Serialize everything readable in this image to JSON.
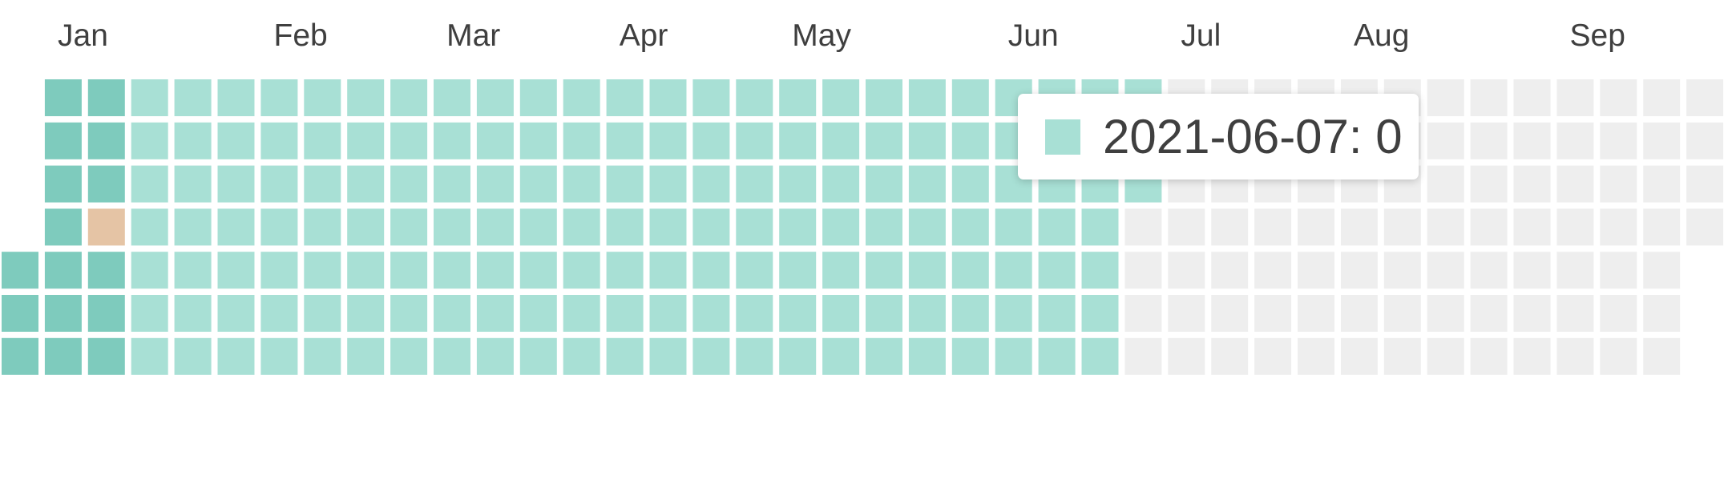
{
  "chart_data": {
    "type": "heatmap",
    "year": 2021,
    "first_day": "2021-01-01",
    "last_day": "2021-09-30",
    "month_labels": [
      "Jan",
      "Feb",
      "Mar",
      "Apr",
      "May",
      "Jun",
      "Jul",
      "Aug",
      "Sep"
    ],
    "color_scale": {
      "empty": "#eeeeee",
      "zero": "#a8e0d5",
      "low": "#7ecbbd",
      "highlight": "#e5c4a5"
    },
    "filled_until": "2021-06-30",
    "values": [
      {
        "from": "2021-01-01",
        "to": "2021-01-13",
        "level": "low"
      },
      {
        "date": "2021-01-14",
        "level": "highlight"
      },
      {
        "from": "2021-01-15",
        "to": "2021-01-17",
        "level": "low"
      },
      {
        "from": "2021-01-18",
        "to": "2021-06-30",
        "level": "zero"
      }
    ],
    "tooltip": {
      "date": "2021-06-07",
      "value": 0,
      "text": "2021-06-07: 0"
    }
  }
}
